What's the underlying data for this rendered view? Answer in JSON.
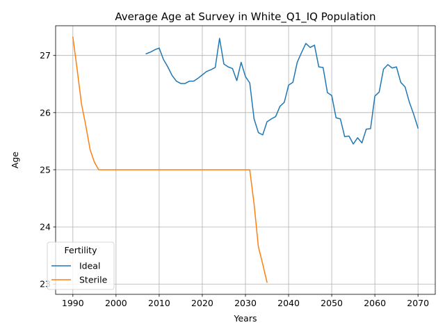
{
  "chart_data": {
    "type": "line",
    "title": "Average Age at Survey in White_Q1_IQ Population",
    "xlabel": "Years",
    "ylabel": "Age",
    "xlim": [
      1986,
      2074
    ],
    "ylim": [
      22.82,
      27.52
    ],
    "xticks": [
      1990,
      2000,
      2010,
      2020,
      2030,
      2040,
      2050,
      2060,
      2070
    ],
    "yticks": [
      23,
      24,
      25,
      26,
      27
    ],
    "grid": true,
    "legend": {
      "title": "Fertility",
      "position": "lower-left"
    },
    "series": [
      {
        "name": "Ideal",
        "color": "#1f77b4",
        "x": [
          2007,
          2008,
          2009,
          2010,
          2011,
          2012,
          2013,
          2014,
          2015,
          2016,
          2017,
          2018,
          2019,
          2020,
          2021,
          2022,
          2023,
          2024,
          2025,
          2026,
          2027,
          2028,
          2029,
          2030,
          2031,
          2032,
          2033,
          2034,
          2035,
          2036,
          2037,
          2038,
          2039,
          2040,
          2041,
          2042,
          2043,
          2044,
          2045,
          2046,
          2047,
          2048,
          2049,
          2050,
          2051,
          2052,
          2053,
          2054,
          2055,
          2056,
          2057,
          2058,
          2059,
          2060,
          2061,
          2062,
          2063,
          2064,
          2065,
          2066,
          2067,
          2068,
          2069,
          2070
        ],
        "y": [
          27.03,
          27.06,
          27.1,
          27.13,
          26.93,
          26.8,
          26.65,
          26.55,
          26.51,
          26.51,
          26.55,
          26.55,
          26.6,
          26.66,
          26.72,
          26.75,
          26.79,
          27.3,
          26.85,
          26.8,
          26.77,
          26.56,
          26.88,
          26.63,
          26.52,
          25.89,
          25.65,
          25.61,
          25.84,
          25.89,
          25.93,
          26.11,
          26.18,
          26.48,
          26.53,
          26.88,
          27.05,
          27.21,
          27.14,
          27.18,
          26.8,
          26.79,
          26.35,
          26.3,
          25.91,
          25.89,
          25.58,
          25.59,
          25.45,
          25.56,
          25.47,
          25.71,
          25.72,
          26.29,
          26.36,
          26.76,
          26.84,
          26.78,
          26.8,
          26.53,
          26.45,
          26.18,
          25.97,
          25.73
        ]
      },
      {
        "name": "Sterile",
        "color": "#ff7f0e",
        "x": [
          1990,
          1991,
          1992,
          1993,
          1994,
          1995,
          1996,
          1997,
          1998,
          1999,
          2000,
          2005,
          2010,
          2015,
          2020,
          2025,
          2030,
          2031,
          2032,
          2033,
          2034,
          2035
        ],
        "y": [
          27.32,
          26.75,
          26.15,
          25.77,
          25.35,
          25.13,
          25.0,
          25.0,
          25.0,
          25.0,
          25.0,
          25.0,
          25.0,
          25.0,
          25.0,
          25.0,
          25.0,
          25.0,
          24.4,
          23.65,
          23.35,
          23.03
        ]
      }
    ]
  }
}
